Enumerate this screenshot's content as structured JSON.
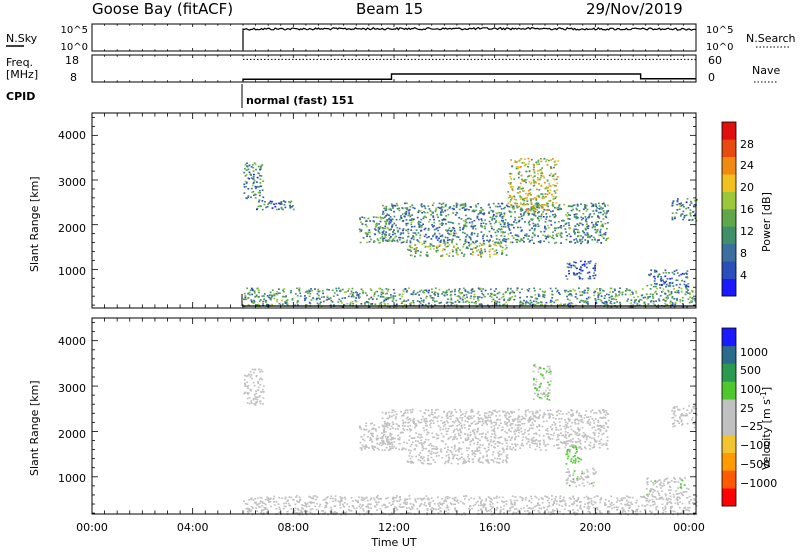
{
  "header": {
    "station": "Goose Bay (fitACF)",
    "beam": "Beam 15",
    "date": "29/Nov/2019"
  },
  "panels": {
    "nsky": {
      "left_label": "N.Sky",
      "left_ticks": [
        "10^5",
        "10^0"
      ],
      "right_ticks": [
        "10^5",
        "10^0"
      ],
      "right_label": "N.Search"
    },
    "freq": {
      "left_label_top": "Freq.",
      "left_label_unit": "[MHz]",
      "left_ticks": [
        "18",
        "8"
      ],
      "right_ticks": [
        "60",
        "0"
      ],
      "right_label": "Nave"
    },
    "cpid": {
      "label": "CPID",
      "program": "normal (fast) 151"
    },
    "power": {
      "ylabel": "Slant Range [km]",
      "yticks": [
        "4000",
        "3000",
        "2000",
        "1000"
      ],
      "cbar_label": "Power [dB]",
      "cbar_ticks": [
        "28",
        "24",
        "20",
        "16",
        "12",
        "8",
        "4"
      ]
    },
    "velocity": {
      "ylabel": "Slant Range [km]",
      "yticks": [
        "4000",
        "3000",
        "2000",
        "1000"
      ],
      "cbar_label": "Velocity [m s",
      "cbar_label_sup": "-1",
      "cbar_label_end": "]",
      "cbar_ticks": [
        "1000",
        "500",
        "100",
        "25",
        "−25",
        "−100",
        "−500",
        "−1000"
      ]
    }
  },
  "xaxis": {
    "ticks": [
      "00:00",
      "04:00",
      "08:00",
      "12:00",
      "16:00",
      "20:00",
      "00:00"
    ],
    "label": "Time UT"
  },
  "colors": {
    "power_scale": [
      "#1a1aff",
      "#2b4fb8",
      "#3a6fa0",
      "#3f8f6a",
      "#5fa84a",
      "#9bc83a",
      "#f0c020",
      "#f08a10",
      "#e84a10",
      "#e01010"
    ],
    "velocity_scale": [
      "#ff0000",
      "#ff5a00",
      "#ff9a00",
      "#f2c430",
      "#c0c0c0",
      "#c0c0c0",
      "#4fc830",
      "#2a9a50",
      "#2a6a8a",
      "#1a1aff"
    ]
  },
  "chart_data": {
    "type": "heatmap",
    "title": "Goose Bay (fitACF) Beam 15 29/Nov/2019",
    "xlabel": "Time UT",
    "x_unit": "hours UT",
    "xlim": [
      0,
      24
    ],
    "ylabel": "Slant Range [km]",
    "ylim": [
      180,
      4500
    ],
    "operation_start_hour": 6.0,
    "series": [
      {
        "name": "N.Sky",
        "type": "line",
        "scale": "log",
        "ylim": [
          1,
          100000
        ],
        "x": [
          6.0,
          6.0,
          6.5,
          8,
          10,
          12,
          14,
          16,
          18,
          20,
          22,
          23.5,
          24
        ],
        "y": [
          1,
          15000,
          16000,
          16500,
          17000,
          18000,
          17500,
          19000,
          18500,
          16000,
          15500,
          15000,
          14000
        ]
      },
      {
        "name": "Freq.",
        "unit": "MHz",
        "type": "step",
        "ylim": [
          8,
          18
        ],
        "x": [
          6.0,
          11.9,
          11.9,
          21.8,
          21.8,
          24
        ],
        "y": [
          8.7,
          8.7,
          10.8,
          10.8,
          8.9,
          8.9
        ]
      },
      {
        "name": "Nave",
        "type": "dotted",
        "ylim": [
          0,
          60
        ],
        "x": [
          6.0,
          24
        ],
        "y": [
          52,
          52
        ]
      },
      {
        "name": "Power",
        "unit": "dB",
        "zlim": [
          0,
          32
        ],
        "cbar_ticks": [
          4,
          8,
          12,
          16,
          20,
          24,
          28
        ],
        "echo_regions": [
          {
            "t": [
              6.0,
              6.8
            ],
            "r": [
              2600,
              3400
            ],
            "z": 10
          },
          {
            "t": [
              6.5,
              8.0
            ],
            "r": [
              2350,
              2600
            ],
            "z": 8
          },
          {
            "t": [
              10.6,
              12.0
            ],
            "r": [
              1600,
              2200
            ],
            "z": 12
          },
          {
            "t": [
              11.5,
              20.5
            ],
            "r": [
              1600,
              2500
            ],
            "z": 10
          },
          {
            "t": [
              12.5,
              16.5
            ],
            "r": [
              1300,
              1600
            ],
            "z": 16
          },
          {
            "t": [
              16.5,
              18.5
            ],
            "r": [
              2300,
              3500
            ],
            "z": 18
          },
          {
            "t": [
              18.8,
              20.0
            ],
            "r": [
              800,
              1200
            ],
            "z": 8
          },
          {
            "t": [
              22.0,
              23.7
            ],
            "r": [
              600,
              1000
            ],
            "z": 8
          },
          {
            "t": [
              23.0,
              24.0
            ],
            "r": [
              2100,
              2600
            ],
            "z": 10
          },
          {
            "t": [
              6.0,
              24.0
            ],
            "r": [
              180,
              600
            ],
            "z": 12
          }
        ]
      },
      {
        "name": "Velocity",
        "unit": "m s^-1",
        "zlim": [
          -1000,
          1000
        ],
        "cbar_ticks": [
          1000,
          500,
          100,
          25,
          -25,
          -100,
          -500,
          -1000
        ],
        "echo_regions": [
          {
            "t": [
              6.0,
              6.8
            ],
            "r": [
              2600,
              3400
            ],
            "v": 0
          },
          {
            "t": [
              10.6,
              12.0
            ],
            "r": [
              1600,
              2200
            ],
            "v": 0
          },
          {
            "t": [
              11.5,
              20.5
            ],
            "r": [
              1600,
              2500
            ],
            "v": 0
          },
          {
            "t": [
              12.5,
              16.5
            ],
            "r": [
              1300,
              1600
            ],
            "v": 0
          },
          {
            "t": [
              17.5,
              18.2
            ],
            "r": [
              2700,
              3500
            ],
            "v": 200
          },
          {
            "t": [
              18.8,
              20.0
            ],
            "r": [
              800,
              1200
            ],
            "v": 150
          },
          {
            "t": [
              18.8,
              19.4
            ],
            "r": [
              1300,
              1700
            ],
            "v": 300
          },
          {
            "t": [
              22.0,
              23.7
            ],
            "r": [
              600,
              1000
            ],
            "v": 150
          },
          {
            "t": [
              23.0,
              24.0
            ],
            "r": [
              2100,
              2600
            ],
            "v": 0
          },
          {
            "t": [
              6.0,
              24.0
            ],
            "r": [
              180,
              600
            ],
            "v": -60
          }
        ]
      }
    ]
  }
}
